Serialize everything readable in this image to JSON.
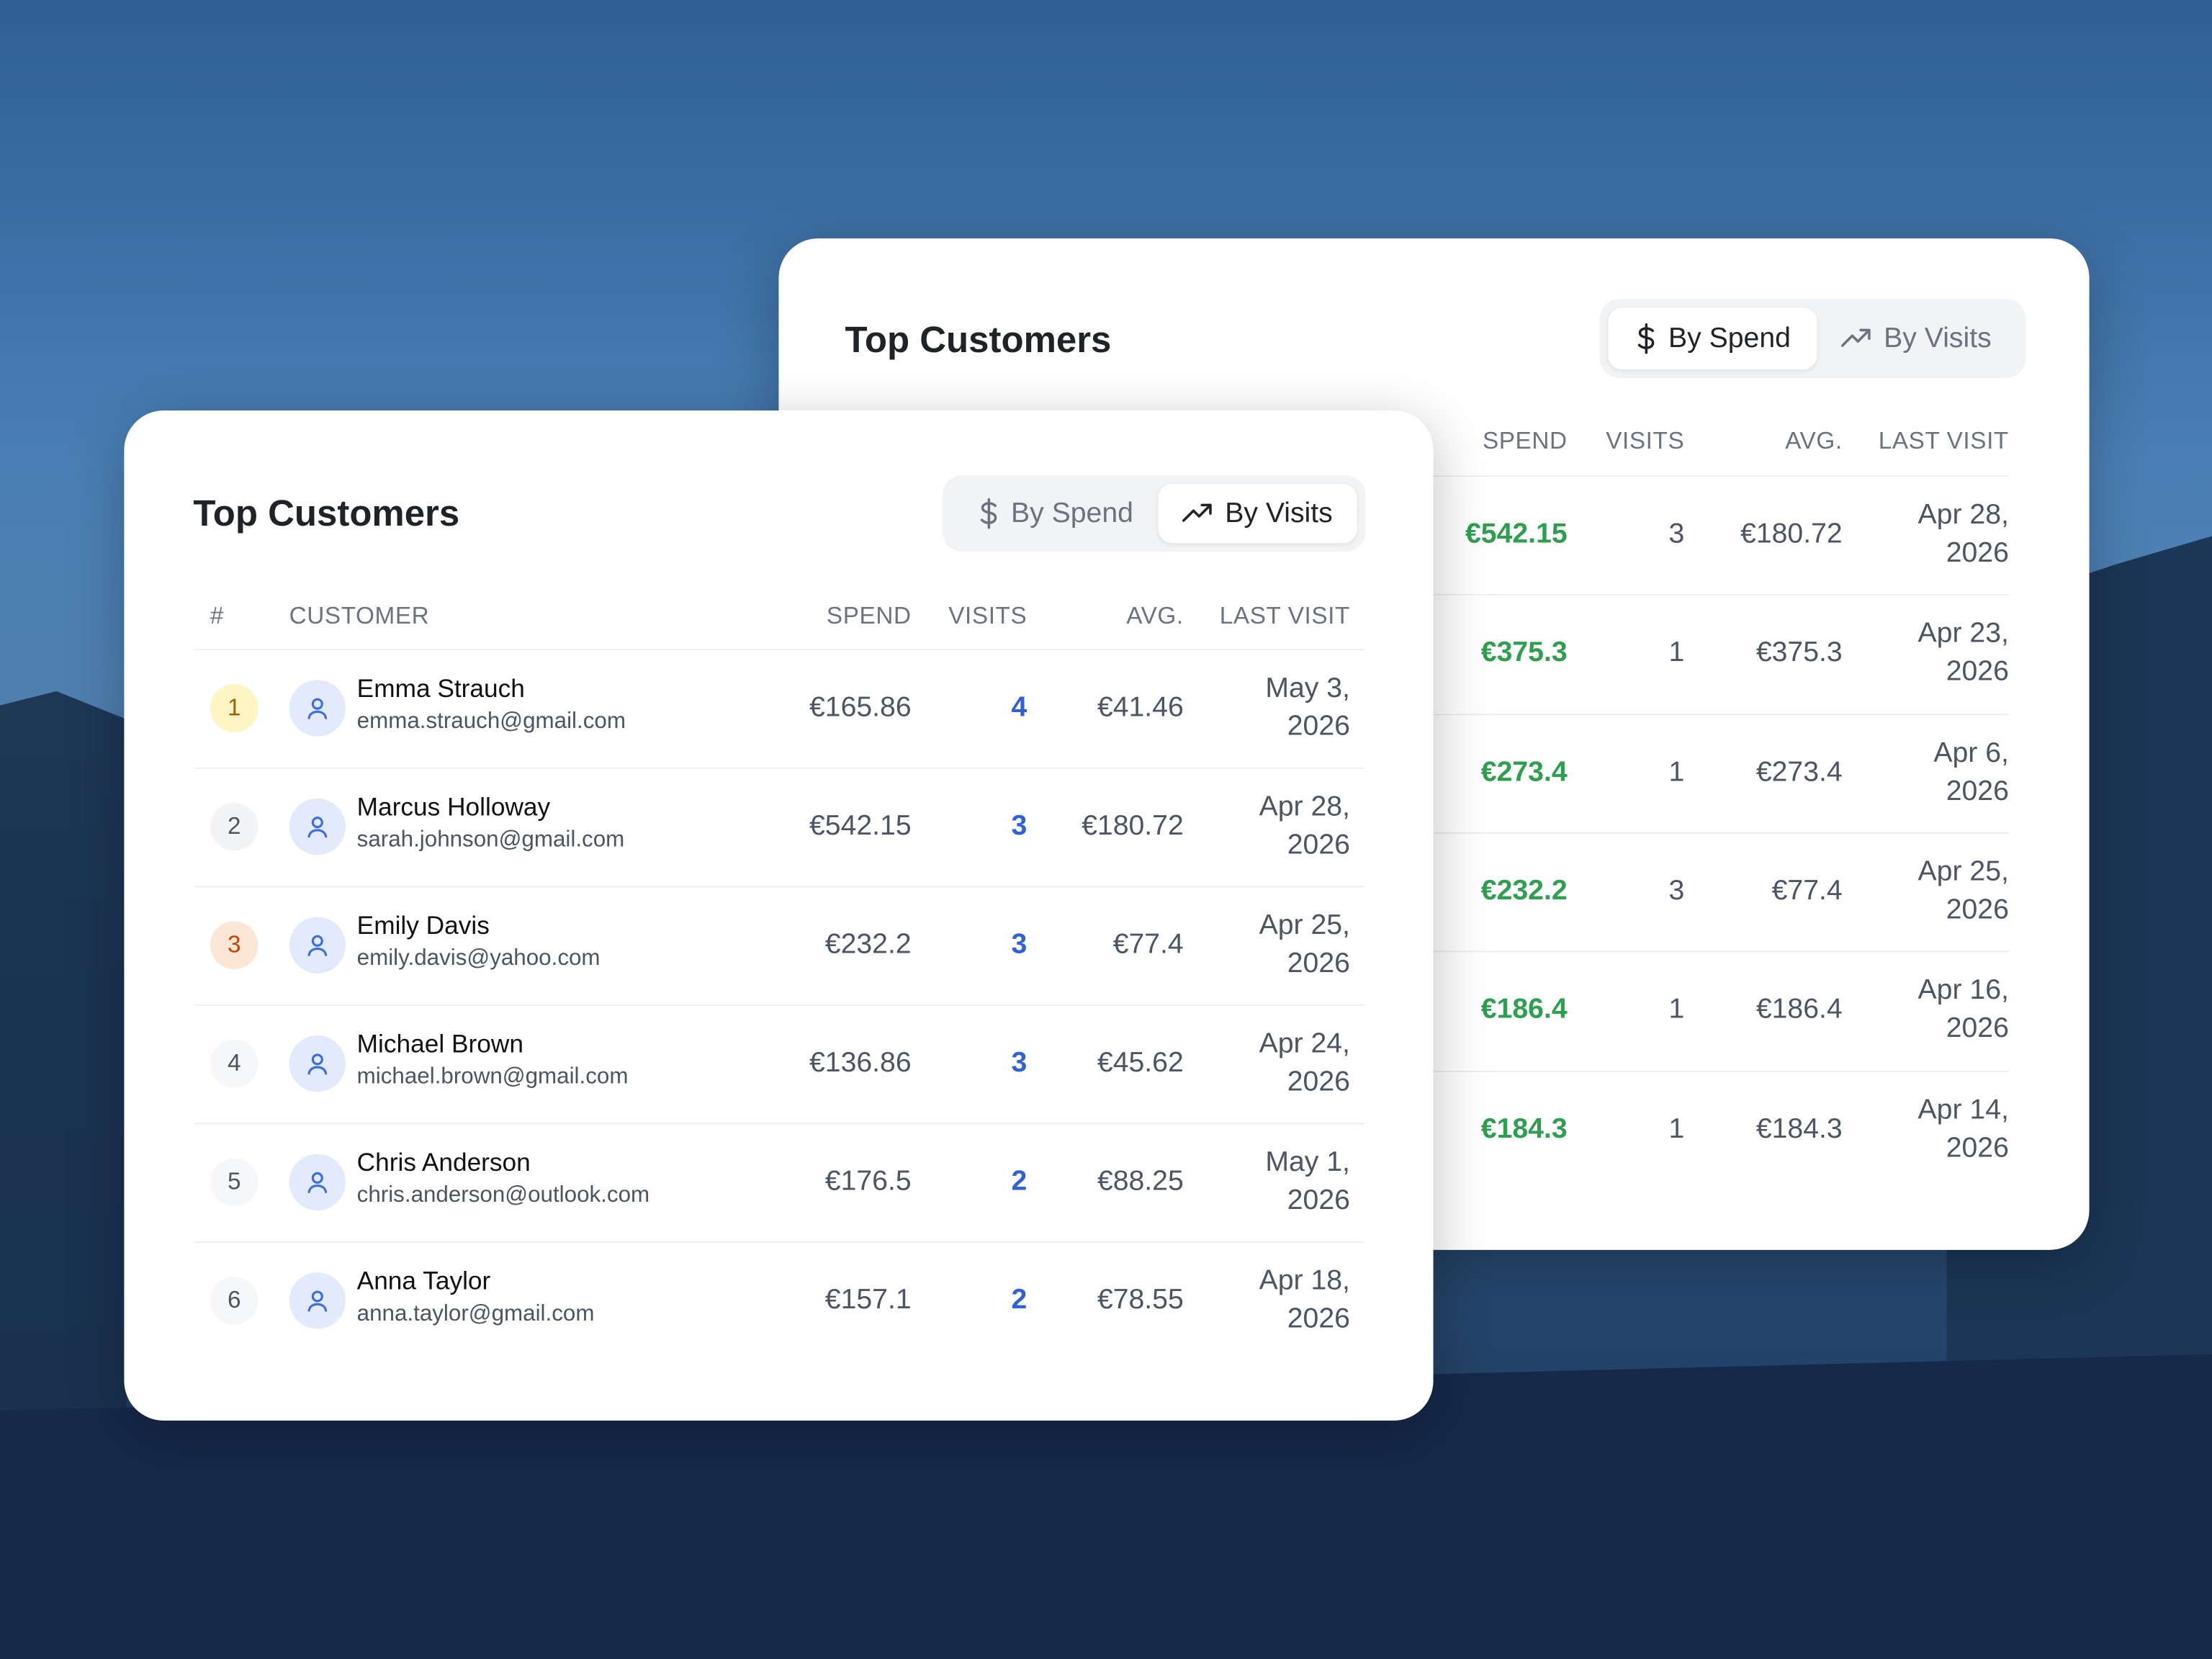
{
  "back_card": {
    "title": "Top Customers",
    "toggle": [
      "By Spend",
      "By Visits"
    ],
    "headers": [
      "SPEND",
      "VISITS",
      "AVG.",
      "LAST VISIT"
    ],
    "rows": [
      [
        "€542.15",
        "3",
        "€180.72",
        "Apr 28, 2026"
      ],
      [
        "€375.3",
        "1",
        "€375.3",
        "Apr 23, 2026"
      ],
      [
        "€273.4",
        "1",
        "€273.4",
        "Apr 6, 2026"
      ],
      [
        "€232.2",
        "3",
        "€77.4",
        "Apr 25, 2026"
      ],
      [
        "€186.4",
        "1",
        "€186.4",
        "Apr 16, 2026"
      ],
      [
        "€184.3",
        "1",
        "€184.3",
        "Apr 14, 2026"
      ]
    ]
  },
  "front_card": {
    "title": "Top Customers",
    "toggle": [
      "By Spend",
      "By Visits"
    ],
    "headers": [
      "#",
      "CUSTOMER",
      "SPEND",
      "VISITS",
      "AVG.",
      "LAST VISIT"
    ],
    "rows": [
      [
        "1",
        "Emma Strauch",
        "emma.strauch@gmail.com",
        "€165.86",
        "4",
        "€41.46",
        "May 3, 2026"
      ],
      [
        "2",
        "Marcus Holloway",
        "sarah.johnson@gmail.com",
        "€542.15",
        "3",
        "€180.72",
        "Apr 28, 2026"
      ],
      [
        "3",
        "Emily Davis",
        "emily.davis@yahoo.com",
        "€232.2",
        "3",
        "€77.4",
        "Apr 25, 2026"
      ],
      [
        "4",
        "Michael Brown",
        "michael.brown@gmail.com",
        "€136.86",
        "3",
        "€45.62",
        "Apr 24, 2026"
      ],
      [
        "5",
        "Chris Anderson",
        "chris.anderson@outlook.com",
        "€176.5",
        "2",
        "€88.25",
        "May 1, 2026"
      ],
      [
        "6",
        "Anna Taylor",
        "anna.taylor@gmail.com",
        "€157.1",
        "2",
        "€78.55",
        "Apr 18, 2026"
      ]
    ]
  }
}
